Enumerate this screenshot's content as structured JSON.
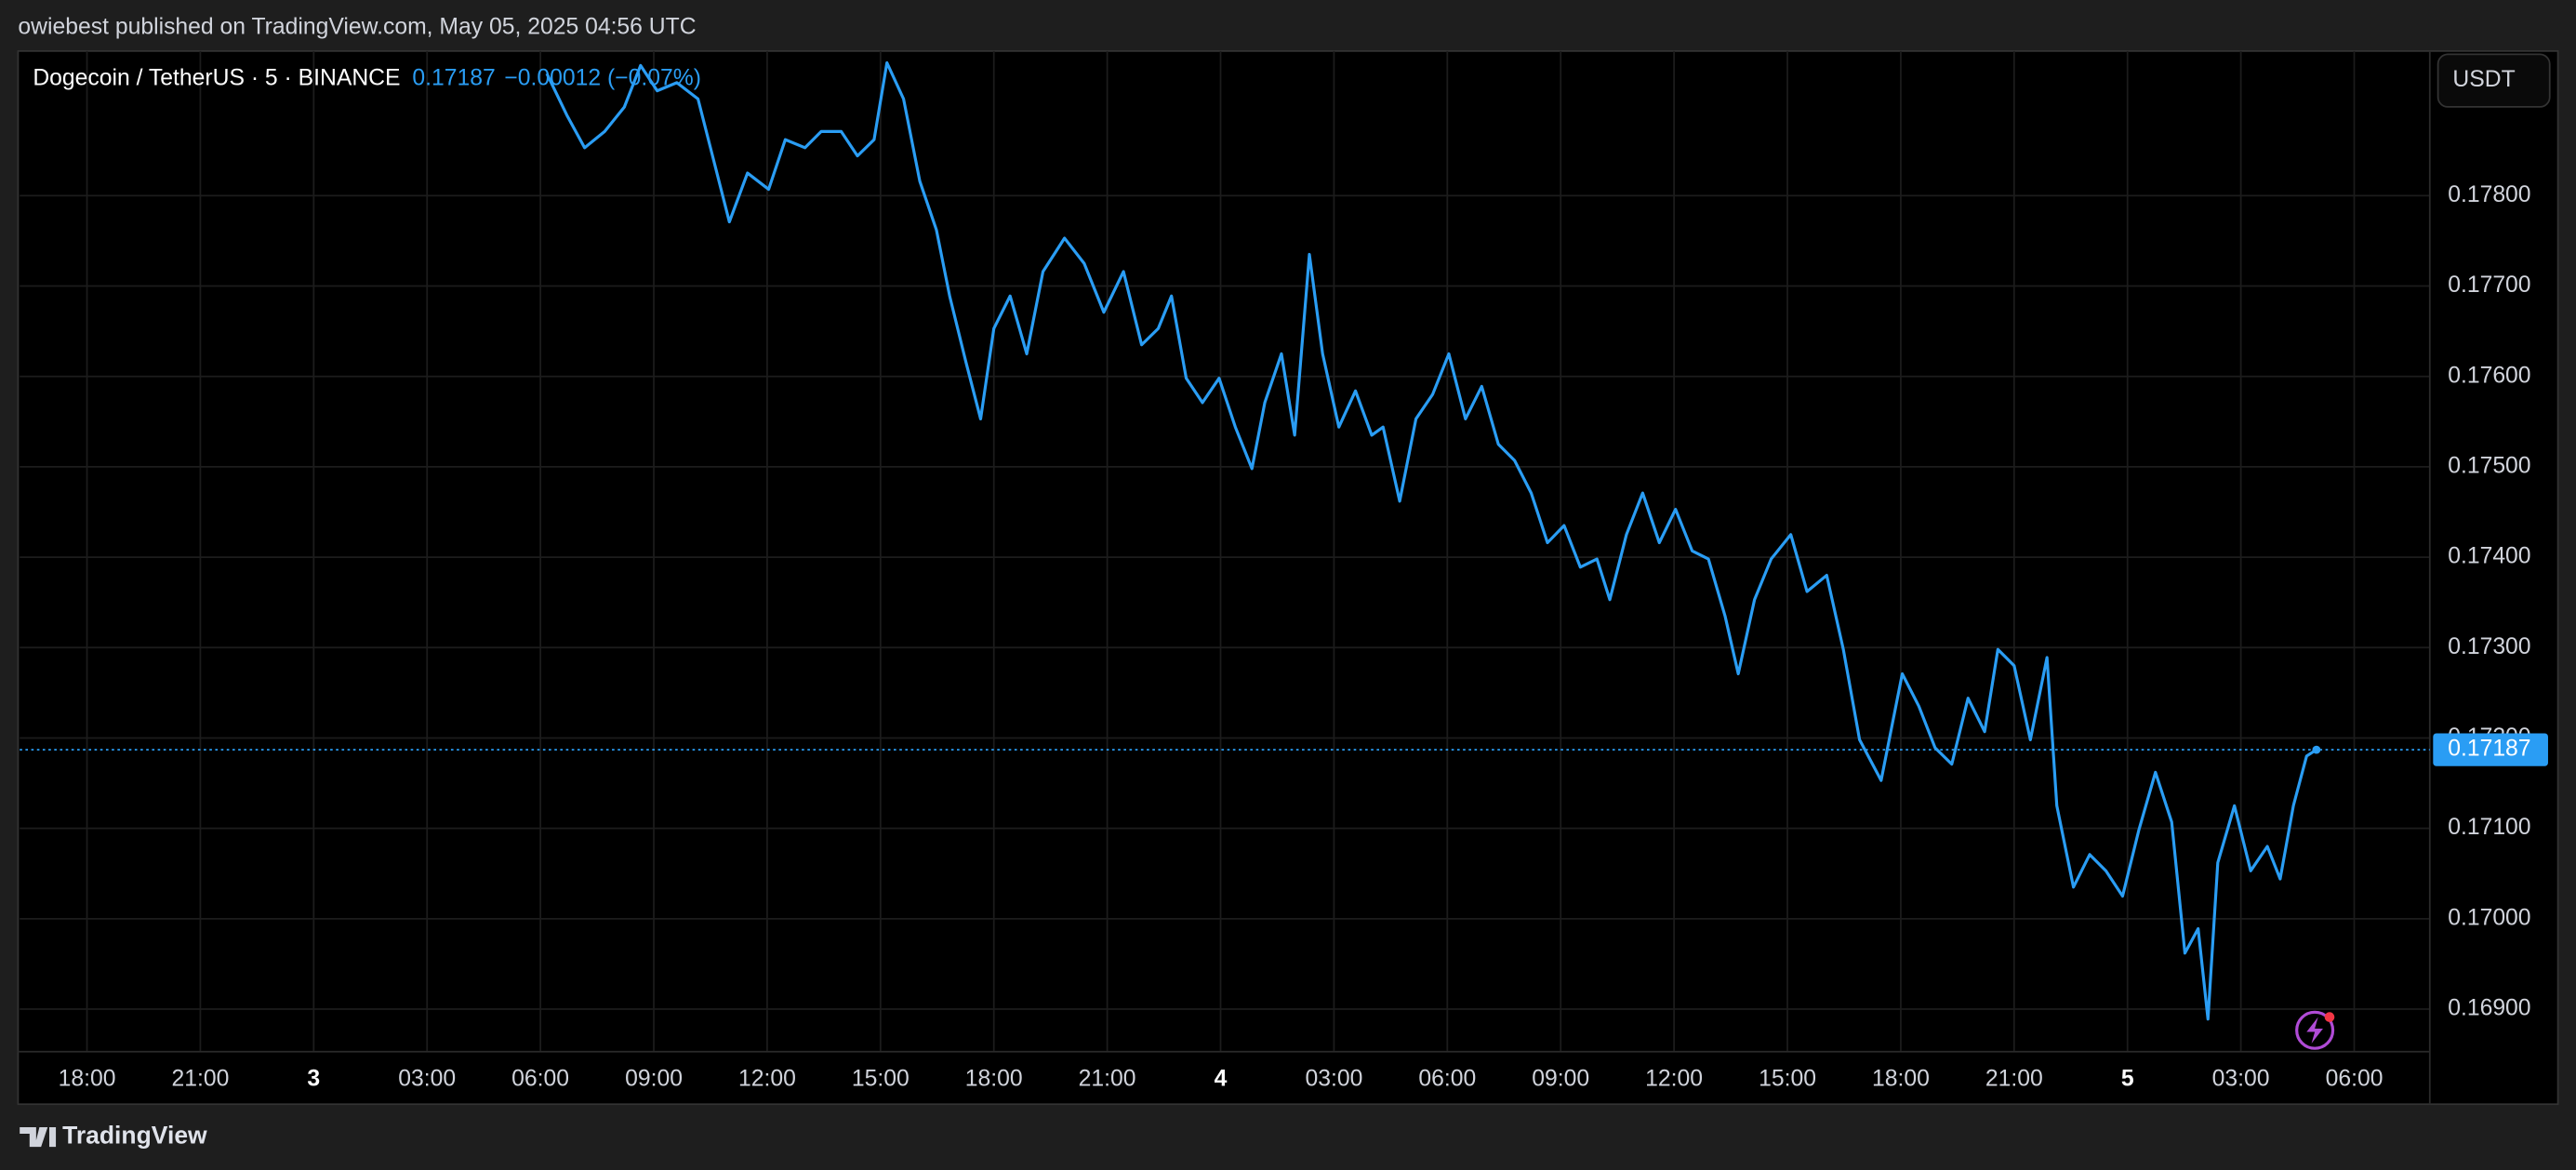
{
  "header": "owiebest published on TradingView.com, May 05, 2025 04:56 UTC",
  "footer": "TradingView",
  "chart_data": {
    "type": "line",
    "symbol": "Dogecoin / TetherUS · 5 · BINANCE",
    "change": "−0.00012 (−0.07%)",
    "currency": "USDT",
    "grid": true,
    "xlim": [
      16.22,
      80.0
    ],
    "ylim": [
      0.16853,
      0.1796
    ],
    "xticks": [
      {
        "value": 18,
        "label": "18:00"
      },
      {
        "value": 21,
        "label": "21:00"
      },
      {
        "value": 24,
        "label": "3"
      },
      {
        "value": 27,
        "label": "03:00"
      },
      {
        "value": 30,
        "label": "06:00"
      },
      {
        "value": 33,
        "label": "09:00"
      },
      {
        "value": 36,
        "label": "12:00"
      },
      {
        "value": 39,
        "label": "15:00"
      },
      {
        "value": 42,
        "label": "18:00"
      },
      {
        "value": 45,
        "label": "21:00"
      },
      {
        "value": 48,
        "label": "4"
      },
      {
        "value": 51,
        "label": "03:00"
      },
      {
        "value": 54,
        "label": "06:00"
      },
      {
        "value": 57,
        "label": "09:00"
      },
      {
        "value": 60,
        "label": "12:00"
      },
      {
        "value": 63,
        "label": "15:00"
      },
      {
        "value": 66,
        "label": "18:00"
      },
      {
        "value": 69,
        "label": "21:00"
      },
      {
        "value": 72,
        "label": "5"
      },
      {
        "value": 75,
        "label": "03:00"
      },
      {
        "value": 78,
        "label": "06:00"
      }
    ],
    "yticks": [
      {
        "value": 0.169,
        "label": "0.16900"
      },
      {
        "value": 0.17,
        "label": "0.17000"
      },
      {
        "value": 0.171,
        "label": "0.17100"
      },
      {
        "value": 0.172,
        "label": "0.17200"
      },
      {
        "value": 0.173,
        "label": "0.17300"
      },
      {
        "value": 0.174,
        "label": "0.17400"
      },
      {
        "value": 0.175,
        "label": "0.17500"
      },
      {
        "value": 0.176,
        "label": "0.17600"
      },
      {
        "value": 0.177,
        "label": "0.17700"
      },
      {
        "value": 0.178,
        "label": "0.17800"
      }
    ],
    "x": [
      30.17,
      30.7,
      31.17,
      31.7,
      32.22,
      32.65,
      33.09,
      33.61,
      34.17,
      34.61,
      35.0,
      35.48,
      36.04,
      36.48,
      37.0,
      37.43,
      37.96,
      38.39,
      38.83,
      39.17,
      39.61,
      40.04,
      40.48,
      40.83,
      41.26,
      41.65,
      42.0,
      42.43,
      42.87,
      43.3,
      43.87,
      44.39,
      44.91,
      45.43,
      45.91,
      46.35,
      46.7,
      47.09,
      47.52,
      47.96,
      48.39,
      48.83,
      49.17,
      49.61,
      49.96,
      50.35,
      50.7,
      51.13,
      51.57,
      52.0,
      52.3,
      52.74,
      53.17,
      53.61,
      54.04,
      54.48,
      54.91,
      55.35,
      55.78,
      56.22,
      56.65,
      57.09,
      57.52,
      57.96,
      58.3,
      58.74,
      59.17,
      59.61,
      60.04,
      60.48,
      60.91,
      61.35,
      61.7,
      62.13,
      62.57,
      63.09,
      63.52,
      64.04,
      64.48,
      64.91,
      65.48,
      66.04,
      66.48,
      66.91,
      67.35,
      67.78,
      68.22,
      68.57,
      69.0,
      69.43,
      69.87,
      70.13,
      70.57,
      71.0,
      71.43,
      71.87,
      72.3,
      72.74,
      73.17,
      73.52,
      73.87,
      74.13,
      74.39,
      74.83,
      75.26,
      75.7,
      76.04,
      76.39,
      76.74,
      77.0
    ],
    "series": [
      {
        "name": "DOGEUSDT",
        "color": "#2a9df4",
        "values": [
          0.17935,
          0.17889,
          0.17853,
          0.17871,
          0.17898,
          0.17944,
          0.17916,
          0.17925,
          0.17907,
          0.17835,
          0.17771,
          0.17825,
          0.17807,
          0.17862,
          0.17853,
          0.17871,
          0.17871,
          0.17844,
          0.17862,
          0.17947,
          0.17907,
          0.17816,
          0.17762,
          0.17689,
          0.17616,
          0.17553,
          0.17653,
          0.17689,
          0.17625,
          0.17716,
          0.17753,
          0.17725,
          0.17671,
          0.17716,
          0.17635,
          0.17653,
          0.17689,
          0.17598,
          0.17571,
          0.17598,
          0.17544,
          0.17498,
          0.17571,
          0.17625,
          0.17535,
          0.17735,
          0.17625,
          0.17544,
          0.17584,
          0.17535,
          0.17544,
          0.17462,
          0.17553,
          0.1758,
          0.17625,
          0.17553,
          0.17589,
          0.17525,
          0.17507,
          0.17471,
          0.17416,
          0.17435,
          0.17389,
          0.17398,
          0.17353,
          0.17425,
          0.17471,
          0.17416,
          0.17453,
          0.17407,
          0.17398,
          0.17335,
          0.17271,
          0.17353,
          0.17398,
          0.17425,
          0.17362,
          0.1738,
          0.17298,
          0.17198,
          0.17153,
          0.17271,
          0.17235,
          0.17189,
          0.17171,
          0.17244,
          0.17207,
          0.17298,
          0.1728,
          0.17198,
          0.17289,
          0.17125,
          0.17035,
          0.17071,
          0.17053,
          0.17025,
          0.17098,
          0.17162,
          0.17107,
          0.16962,
          0.16989,
          0.16889,
          0.17062,
          0.17125,
          0.17053,
          0.1708,
          0.17044,
          0.17125,
          0.1718,
          0.17187
        ]
      }
    ]
  }
}
